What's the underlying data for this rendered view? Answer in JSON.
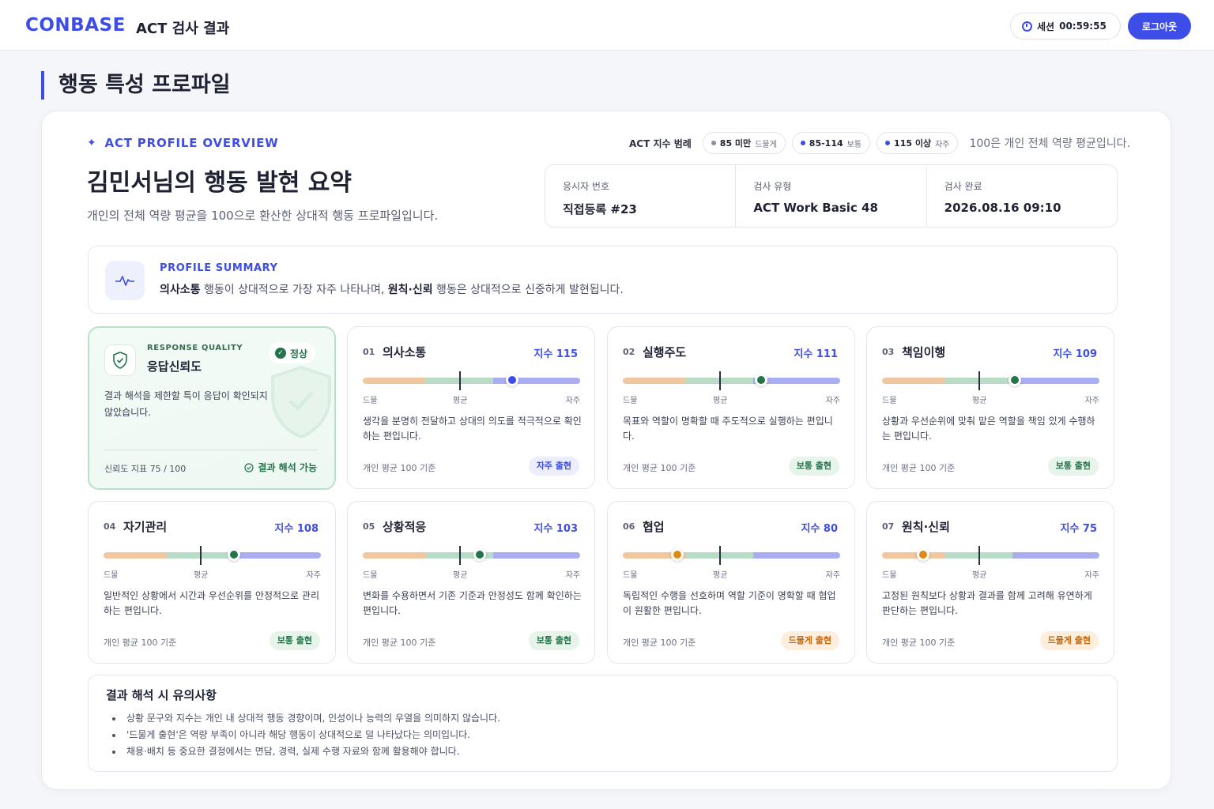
{
  "header": {
    "brand": "CONBASE",
    "title": "ACT 검사 결과",
    "session_label": "세션",
    "session_time": "00:59:55",
    "logout_label": "로그아웃"
  },
  "page_title": "행동 특성 프로파일",
  "overview": {
    "label": "ACT PROFILE OVERVIEW",
    "title": "김민서님의 행동 발현 요약",
    "subtitle": "개인의 전체 역량 평균을 100으로 환산한 상대적 행동 프로파일입니다."
  },
  "range": {
    "label": "ACT 지수 범례",
    "chips": [
      {
        "num": "85 미만",
        "word": "드물게",
        "color": "#8a8fa3"
      },
      {
        "num": "85-114",
        "word": "보통",
        "color": "#3d4de8"
      },
      {
        "num": "115 이상",
        "word": "자주",
        "color": "#3d4de8"
      }
    ],
    "note": "100은 개인 전체 역량 평균입니다."
  },
  "info": [
    {
      "key": "응시자 번호",
      "value": "직접등록 #23"
    },
    {
      "key": "검사 유형",
      "value": "ACT Work Basic 48"
    },
    {
      "key": "검사 완료",
      "value": "2026.08.16 09:10"
    }
  ],
  "summary": {
    "label": "PROFILE SUMMARY",
    "strong1": "의사소통",
    "text1": " 행동이 상대적으로 가장 자주 나타나며, ",
    "strong2": "원칙·신뢰",
    "text2": " 행동은 상대적으로 신중하게 발현됩니다."
  },
  "quality": {
    "label": "RESPONSE QUALITY",
    "title": "응답신뢰도",
    "status": "정상",
    "desc": "결과 해석을 제한할 특이 응답이 확인되지 않았습니다.",
    "metric": "신뢰도 지표 75 / 100",
    "result": "결과 해석 가능"
  },
  "scale_labels": {
    "low": "드물",
    "mid": "평균",
    "high": "자주"
  },
  "cards": [
    {
      "idx": "01",
      "name": "의사소통",
      "score_text": "지수 115",
      "score": 115,
      "knob_color": "#3d4de8",
      "desc": "생각을 분명히 전달하고 상대의 의도를 적극적으로 확인하는 편입니다.",
      "base": "개인 평균 100 기준",
      "pill": "자주 출현",
      "pill_type": "freq"
    },
    {
      "idx": "02",
      "name": "실행주도",
      "score_text": "지수 111",
      "score": 111,
      "knob_color": "#23744a",
      "desc": "목표와 역할이 명확할 때 주도적으로 실행하는 편입니다.",
      "base": "개인 평균 100 기준",
      "pill": "보통 출현",
      "pill_type": "mid"
    },
    {
      "idx": "03",
      "name": "책임이행",
      "score_text": "지수 109",
      "score": 109,
      "knob_color": "#23744a",
      "desc": "상황과 우선순위에 맞춰 맡은 역할을 책임 있게 수행하는 편입니다.",
      "base": "개인 평균 100 기준",
      "pill": "보통 출현",
      "pill_type": "mid"
    },
    {
      "idx": "04",
      "name": "자기관리",
      "score_text": "지수 108",
      "score": 108,
      "knob_color": "#23744a",
      "desc": "일반적인 상황에서 시간과 우선순위를 안정적으로 관리하는 편입니다.",
      "base": "개인 평균 100 기준",
      "pill": "보통 출현",
      "pill_type": "mid"
    },
    {
      "idx": "05",
      "name": "상황적응",
      "score_text": "지수 103",
      "score": 103,
      "knob_color": "#23744a",
      "desc": "변화를 수용하면서 기존 기준과 안정성도 함께 확인하는 편입니다.",
      "base": "개인 평균 100 기준",
      "pill": "보통 출현",
      "pill_type": "mid"
    },
    {
      "idx": "06",
      "name": "협업",
      "score_text": "지수 80",
      "score": 80,
      "knob_color": "#e08a12",
      "desc": "독립적인 수행을 선호하며 역할 기준이 명확할 때 협업이 원활한 편입니다.",
      "base": "개인 평균 100 기준",
      "pill": "드물게 출현",
      "pill_type": "low"
    },
    {
      "idx": "07",
      "name": "원칙·신뢰",
      "score_text": "지수 75",
      "score": 75,
      "knob_color": "#e08a12",
      "desc": "고정된 원칙보다 상황과 결과를 함께 고려해 유연하게 판단하는 편입니다.",
      "base": "개인 평균 100 기준",
      "pill": "드물게 출현",
      "pill_type": "low"
    }
  ],
  "notes": {
    "title": "결과 해석 시 유의사항",
    "items": [
      "상황 문구와 지수는 개인 내 상대적 행동 경향이며, 인성이나 능력의 우열을 의미하지 않습니다.",
      "'드물게 출현'은 역량 부족이 아니라 해당 행동이 상대적으로 덜 나타났다는 의미입니다.",
      "채용·배치 등 중요한 결정에서는 면담, 경력, 실제 수행 자료와 함께 활용해야 합니다."
    ]
  }
}
